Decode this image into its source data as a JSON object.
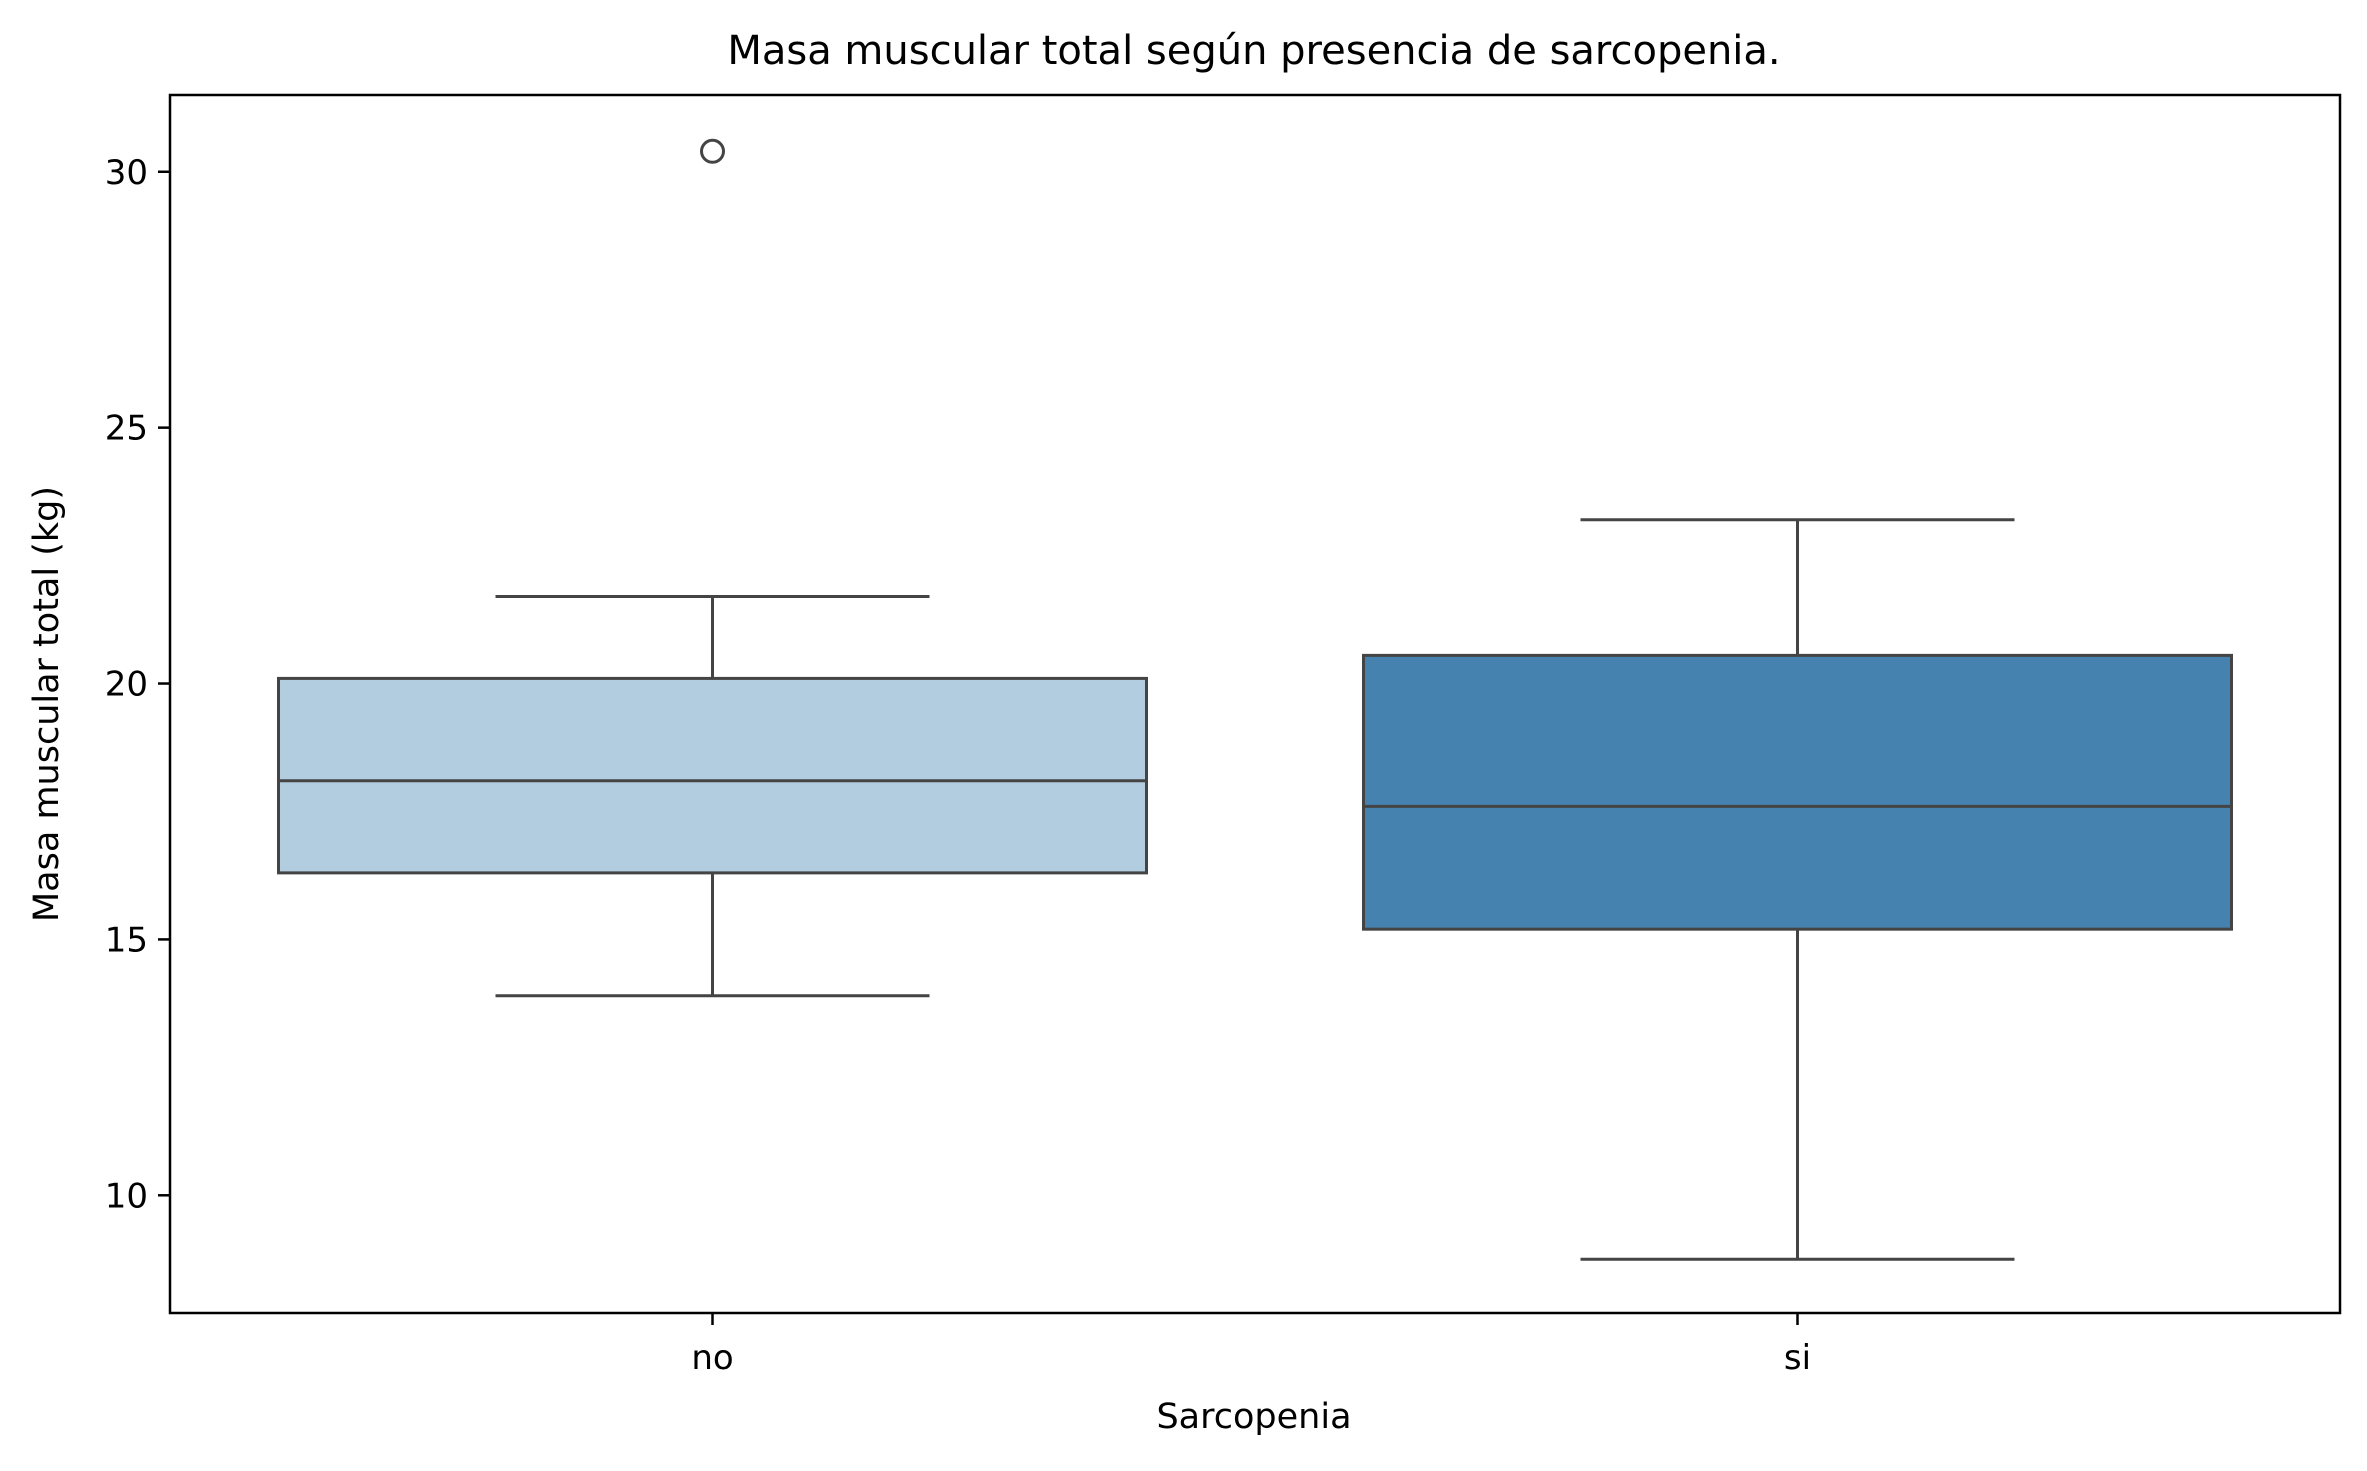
{
  "chart_data": {
    "type": "boxplot",
    "title": "Masa muscular total según presencia de sarcopenia.",
    "xlabel": "Sarcopenia",
    "ylabel": "Masa muscular total (kg)",
    "ylim": [
      7.7,
      31.5
    ],
    "yticks": [
      10,
      15,
      20,
      25,
      30
    ],
    "grid": false,
    "categories": [
      "no",
      "si"
    ],
    "boxes": [
      {
        "category": "no",
        "whisker_low": 13.9,
        "q1": 16.3,
        "median": 18.1,
        "q3": 20.1,
        "whisker_high": 21.7,
        "outliers": [
          30.4
        ],
        "color": "#b3cde0"
      },
      {
        "category": "si",
        "whisker_low": 8.75,
        "q1": 15.2,
        "median": 17.6,
        "q3": 20.55,
        "whisker_high": 23.2,
        "outliers": [],
        "color": "#4682b0"
      }
    ],
    "line_color": "#444444"
  }
}
